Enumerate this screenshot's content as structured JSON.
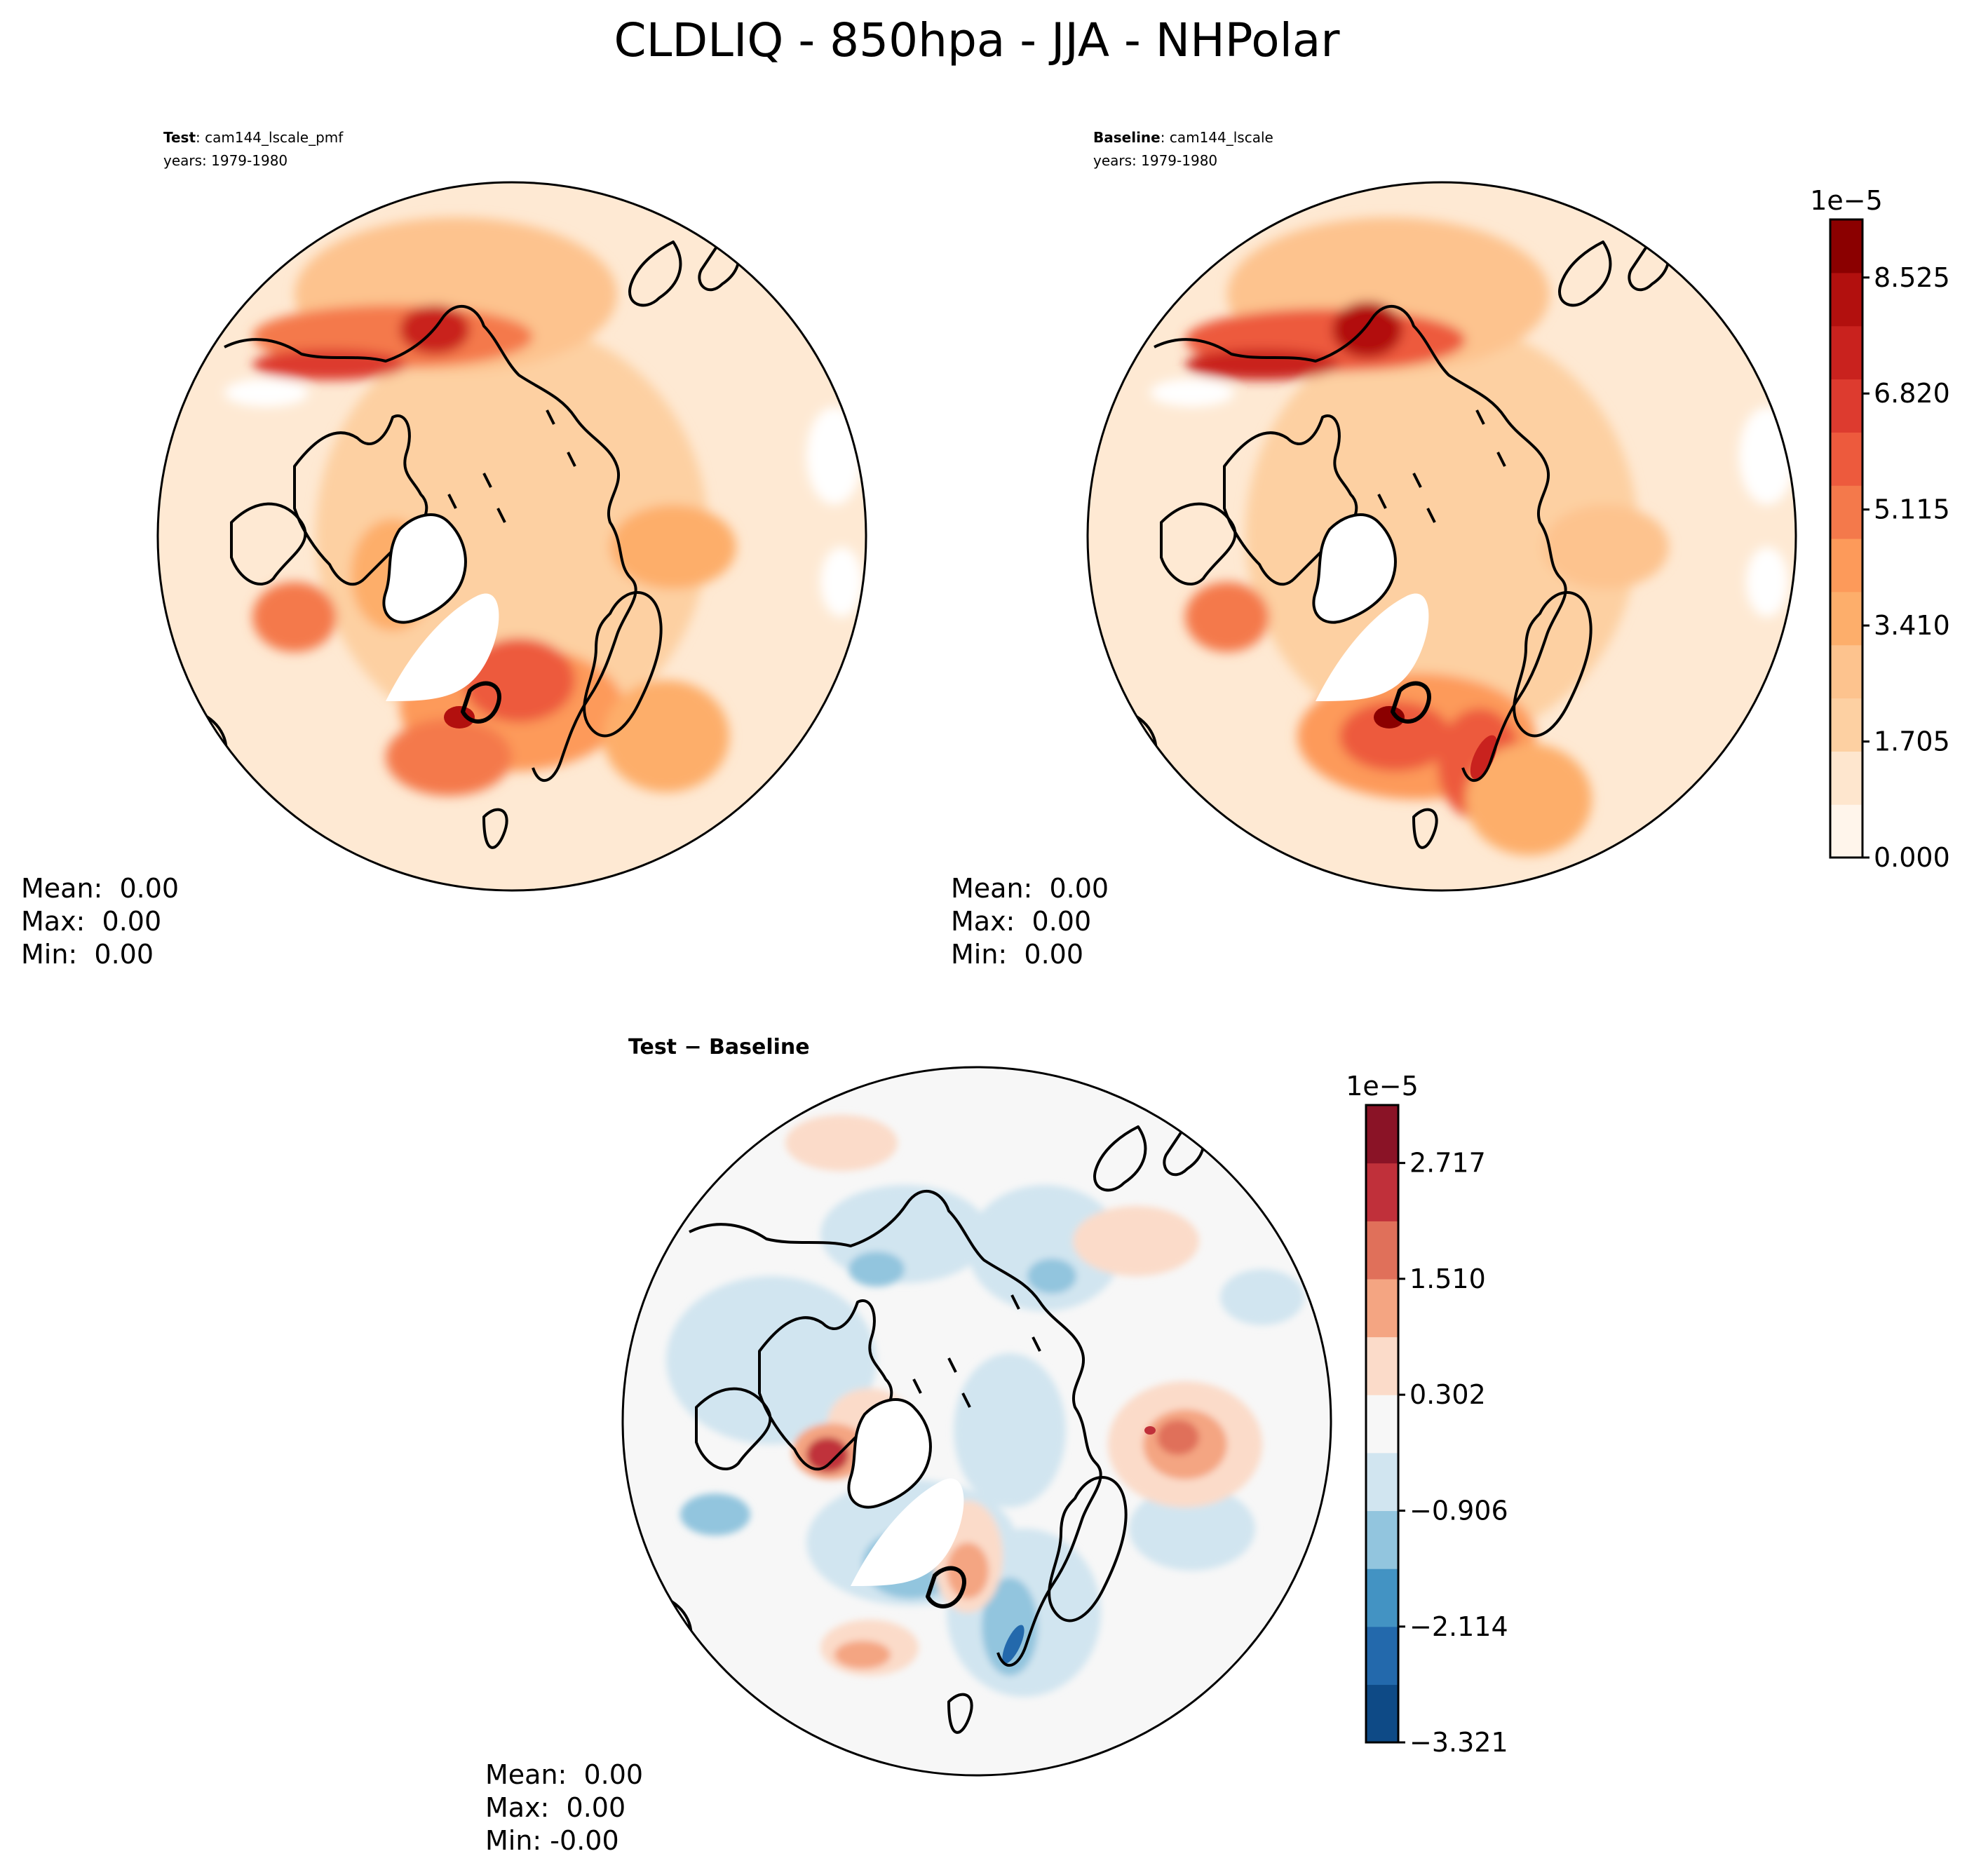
{
  "figure": {
    "title": "CLDLIQ - 850hpa - JJA - NHPolar"
  },
  "panels": {
    "test": {
      "label_bold": "Test",
      "label_rest": ": cam144_lscale_pmf",
      "years": "years: 1979-1980",
      "stats": {
        "mean": "Mean:  0.00",
        "max": "Max:  0.00",
        "min": "Min:  0.00"
      }
    },
    "baseline": {
      "label_bold": "Baseline",
      "label_rest": ": cam144_lscale",
      "years": "years: 1979-1980",
      "stats": {
        "mean": "Mean:  0.00",
        "max": "Max:  0.00",
        "min": "Min:  0.00"
      }
    },
    "diff": {
      "label_bold": "Test − Baseline",
      "stats": {
        "mean": "Mean:  0.00",
        "max": "Max:  0.00",
        "min": "Min: -0.00"
      }
    }
  },
  "chart_data": [
    {
      "type": "heatmap",
      "name": "test",
      "projection": "north polar stereographic",
      "variable": "CLDLIQ",
      "level": "850hpa",
      "season": "JJA",
      "region": "NHPolar",
      "colormap": "Reds",
      "colorbar": {
        "multiplier": "1e−5",
        "min": 0.0,
        "max": 9.378,
        "ticks": [
          "8.525",
          "6.820",
          "5.115",
          "3.410",
          "1.705",
          "0.000"
        ],
        "tick_values": [
          8.525,
          6.82,
          5.115,
          3.41,
          1.705,
          0.0
        ],
        "colors": [
          "#fff5eb",
          "#fee6ce",
          "#fdd0a2",
          "#fdc38e",
          "#fdae6b",
          "#fd9a5a",
          "#f4794b",
          "#ed5a3d",
          "#dd3b2f",
          "#c9221e",
          "#b2100e",
          "#8b0000"
        ]
      }
    },
    {
      "type": "heatmap",
      "name": "baseline",
      "projection": "north polar stereographic",
      "colormap": "Reds",
      "colorbar": "shared with test"
    },
    {
      "type": "heatmap",
      "name": "difference",
      "projection": "north polar stereographic",
      "colormap": "RdBu_r",
      "colorbar": {
        "multiplier": "1e−5",
        "min": -3.321,
        "max": 3.321,
        "ticks": [
          "2.717",
          "1.510",
          "0.302",
          "−0.906",
          "−2.114",
          "−3.321"
        ],
        "tick_values": [
          2.717,
          1.51,
          0.302,
          -0.906,
          -2.114,
          -3.321
        ],
        "colors": [
          "#0e4a86",
          "#2369ac",
          "#4393c3",
          "#92c5de",
          "#d1e5f0",
          "#f7f7f7",
          "#fbdbc9",
          "#f4a582",
          "#e0705a",
          "#c0303a",
          "#8a1326"
        ]
      }
    }
  ]
}
